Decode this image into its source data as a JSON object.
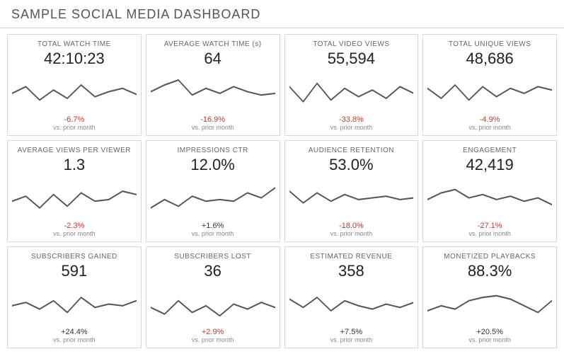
{
  "header": {
    "title": "SAMPLE SOCIAL MEDIA DASHBOARD"
  },
  "compare_text": "vs. prior month",
  "spark_style": {
    "stroke": "#555555",
    "stroke_width": 1.6,
    "fill": "none",
    "viewbox_w": 180,
    "viewbox_h": 48,
    "y_min": 6,
    "y_max": 42
  },
  "delta_colors": {
    "negative": "#c0392b",
    "positive": "#333333"
  },
  "metrics": [
    {
      "id": "total-watch-time",
      "label": "TOTAL WATCH TIME",
      "value": "42:10:23",
      "delta": "-6.7%",
      "delta_sign": "neg",
      "spark": [
        0.55,
        0.35,
        0.75,
        0.45,
        0.7,
        0.3,
        0.65,
        0.5,
        0.4,
        0.58
      ]
    },
    {
      "id": "avg-watch-time",
      "label": "AVERAGE WATCH TIME (s)",
      "value": "64",
      "delta": "-16.9%",
      "delta_sign": "neg",
      "spark": [
        0.5,
        0.3,
        0.15,
        0.6,
        0.4,
        0.55,
        0.35,
        0.5,
        0.6,
        0.55
      ]
    },
    {
      "id": "total-video-views",
      "label": "TOTAL VIDEO VIEWS",
      "value": "55,594",
      "delta": "-33.8%",
      "delta_sign": "neg",
      "spark": [
        0.35,
        0.8,
        0.25,
        0.75,
        0.4,
        0.65,
        0.45,
        0.7,
        0.35,
        0.55
      ]
    },
    {
      "id": "total-unique-views",
      "label": "TOTAL UNIQUE VIEWS",
      "value": "48,686",
      "delta": "-4.9%",
      "delta_sign": "neg",
      "spark": [
        0.4,
        0.7,
        0.3,
        0.75,
        0.35,
        0.65,
        0.4,
        0.55,
        0.35,
        0.45
      ]
    },
    {
      "id": "avg-views-per-viewer",
      "label": "AVERAGE VIEWS PER VIEWER",
      "value": "1.3",
      "delta": "-2.3%",
      "delta_sign": "neg",
      "spark": [
        0.6,
        0.45,
        0.8,
        0.4,
        0.75,
        0.35,
        0.6,
        0.55,
        0.3,
        0.4
      ]
    },
    {
      "id": "impressions-ctr",
      "label": "IMPRESSIONS CTR",
      "value": "12.0%",
      "delta": "+1.6%",
      "delta_sign": "pos",
      "spark": [
        0.8,
        0.55,
        0.75,
        0.45,
        0.6,
        0.55,
        0.6,
        0.35,
        0.5,
        0.2
      ]
    },
    {
      "id": "audience-retention",
      "label": "AUDIENCE RETENTION",
      "value": "53.0%",
      "delta": "-18.0%",
      "delta_sign": "neg",
      "spark": [
        0.3,
        0.65,
        0.35,
        0.6,
        0.4,
        0.55,
        0.5,
        0.45,
        0.55,
        0.5
      ]
    },
    {
      "id": "engagement",
      "label": "ENGAGEMENT",
      "value": "42,419",
      "delta": "-27.1%",
      "delta_sign": "neg",
      "spark": [
        0.55,
        0.35,
        0.25,
        0.5,
        0.4,
        0.55,
        0.45,
        0.6,
        0.5,
        0.7
      ]
    },
    {
      "id": "subscribers-gained",
      "label": "SUBSCRIBERS GAINED",
      "value": "591",
      "delta": "+24.4%",
      "delta_sign": "pos",
      "spark": [
        0.55,
        0.45,
        0.65,
        0.4,
        0.75,
        0.3,
        0.6,
        0.5,
        0.55,
        0.4
      ]
    },
    {
      "id": "subscribers-lost",
      "label": "SUBSCRIBERS LOST",
      "value": "36",
      "delta": "+2.9%",
      "delta_sign": "neg",
      "spark": [
        0.6,
        0.8,
        0.4,
        0.75,
        0.55,
        0.85,
        0.5,
        0.65,
        0.45,
        0.6
      ]
    },
    {
      "id": "estimated-revenue",
      "label": "ESTIMATED REVENUE",
      "value": "358",
      "delta": "+7.5%",
      "delta_sign": "pos",
      "spark": [
        0.35,
        0.6,
        0.3,
        0.7,
        0.4,
        0.55,
        0.65,
        0.5,
        0.6,
        0.45
      ]
    },
    {
      "id": "monetized-playbacks",
      "label": "MONETIZED PLAYBACKS",
      "value": "88.3%",
      "delta": "+20.5%",
      "delta_sign": "pos",
      "spark": [
        0.7,
        0.55,
        0.65,
        0.4,
        0.3,
        0.25,
        0.35,
        0.55,
        0.75,
        0.4
      ]
    }
  ]
}
